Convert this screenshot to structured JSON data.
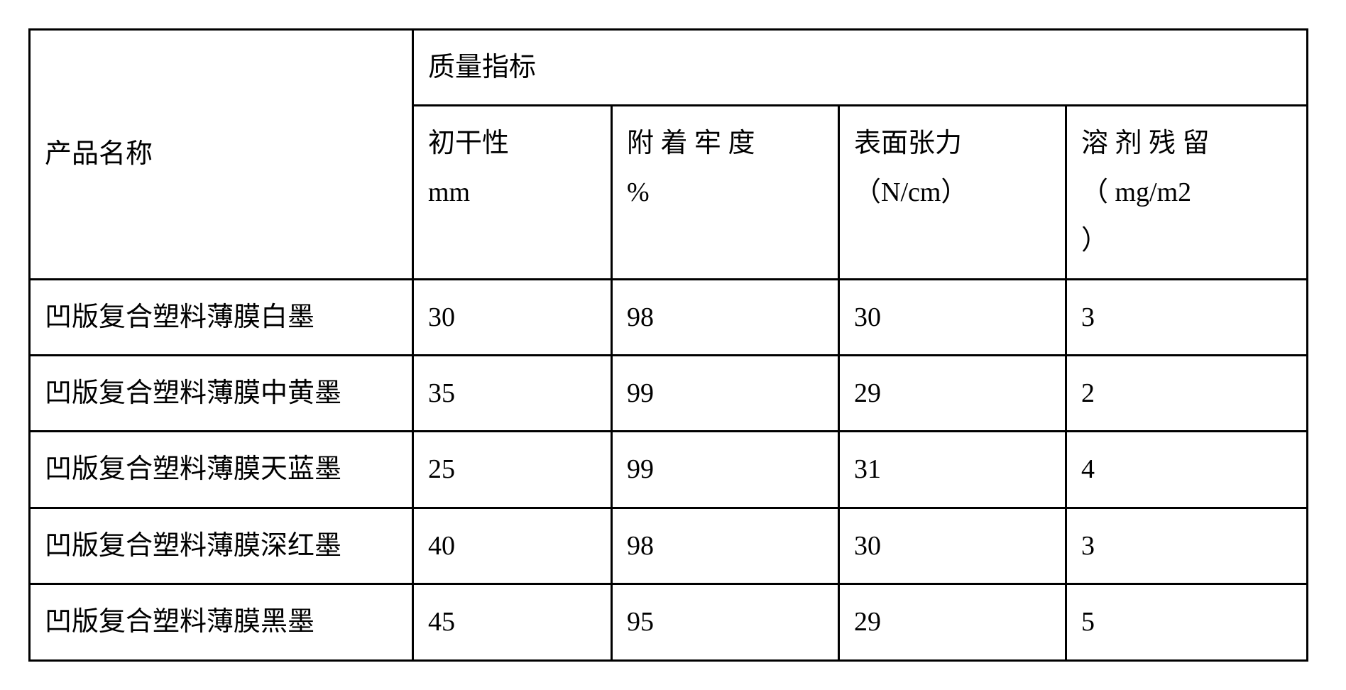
{
  "table": {
    "header": {
      "product_name": "产品名称",
      "quality_label": "质量指标",
      "col1_line1": "初干性",
      "col1_line2": "mm",
      "col2_line1": "附 着 牢 度",
      "col2_line2": "%",
      "col3_line1": "表面张力",
      "col3_line2": "（N/cm）",
      "col4_line1": "溶 剂 残 留",
      "col4_line2": "（  mg/m2",
      "col4_line3": "）"
    },
    "rows": [
      {
        "name": "凹版复合塑料薄膜白墨",
        "v1": "30",
        "v2": "98",
        "v3": "30",
        "v4": "3"
      },
      {
        "name": "凹版复合塑料薄膜中黄墨",
        "v1": "35",
        "v2": "99",
        "v3": "29",
        "v4": "2"
      },
      {
        "name": "凹版复合塑料薄膜天蓝墨",
        "v1": "25",
        "v2": "99",
        "v3": "31",
        "v4": "4"
      },
      {
        "name": "凹版复合塑料薄膜深红墨",
        "v1": "40",
        "v2": "98",
        "v3": "30",
        "v4": "3"
      },
      {
        "name": "凹版复合塑料薄膜黑墨",
        "v1": "45",
        "v2": "95",
        "v3": "29",
        "v4": "5"
      }
    ],
    "colors": {
      "border": "#000000",
      "background": "#ffffff",
      "text": "#000000"
    },
    "font_size_pt": 38
  }
}
